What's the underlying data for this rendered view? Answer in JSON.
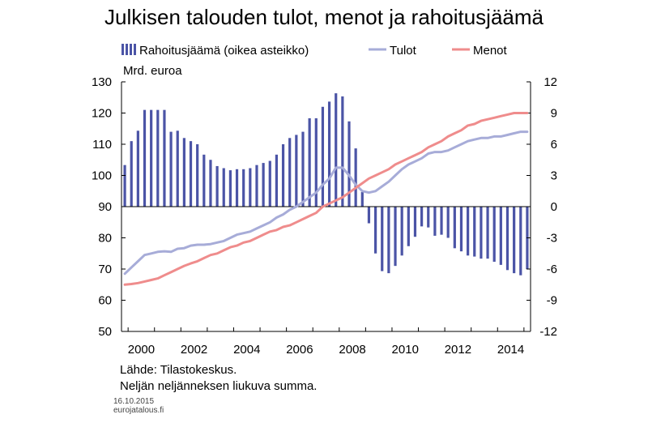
{
  "chart_data": {
    "type": "bar+line",
    "title": "Julkisen talouden tulot, menot ja rahoitusjäämä",
    "left_axis_label": "Mrd. euroa",
    "left_ylim": [
      50,
      130
    ],
    "left_ticks": [
      "130",
      "120",
      "110",
      "100",
      "90",
      "80",
      "70",
      "60",
      "50"
    ],
    "right_ylim": [
      -12,
      12
    ],
    "right_ticks": [
      "12",
      "9",
      "6",
      "3",
      "0",
      "-3",
      "-6",
      "-9",
      "-12"
    ],
    "x_ticks": [
      "2000",
      "2002",
      "2004",
      "2006",
      "2008",
      "2010",
      "2012",
      "2014"
    ],
    "x_start_year": 1999.75,
    "quarter_step": 0.25,
    "series": [
      {
        "name": "Rahoitusjäämä (oikea asteikko)",
        "kind": "bar",
        "axis": "right",
        "color": "#4b54a6",
        "values": [
          4.0,
          6.3,
          7.3,
          9.3,
          9.3,
          9.3,
          9.3,
          7.2,
          7.3,
          6.6,
          6.3,
          6.0,
          5.0,
          4.5,
          3.9,
          3.7,
          3.5,
          3.6,
          3.6,
          3.7,
          4.0,
          4.2,
          4.4,
          5.0,
          6.0,
          6.6,
          6.9,
          7.2,
          8.5,
          8.5,
          9.6,
          10.1,
          10.9,
          10.6,
          8.2,
          5.6,
          1.4,
          -1.6,
          -4.5,
          -6.2,
          -6.4,
          -5.7,
          -4.7,
          -3.8,
          -2.9,
          -1.9,
          -2.0,
          -2.8,
          -2.7,
          -3.0,
          -4.0,
          -4.3,
          -4.7,
          -4.8,
          -5.0,
          -5.0,
          -5.3,
          -5.6,
          -6.1,
          -6.4,
          -6.6,
          -6.0
        ]
      },
      {
        "name": "Tulot",
        "kind": "line",
        "axis": "left",
        "color": "#a7acd8",
        "values": [
          68.5,
          70.5,
          72.5,
          74.5,
          75.0,
          75.5,
          75.7,
          75.5,
          76.5,
          76.7,
          77.5,
          77.8,
          77.8,
          78.0,
          78.5,
          79.0,
          80.0,
          81.0,
          81.5,
          82.0,
          83.0,
          84.0,
          85.0,
          86.5,
          87.5,
          89.0,
          90.0,
          91.5,
          93.0,
          94.5,
          97.0,
          99.0,
          102.5,
          102.5,
          100.0,
          97.0,
          95.0,
          94.5,
          95.0,
          96.5,
          98.0,
          100.0,
          102.0,
          103.5,
          104.5,
          105.5,
          107.0,
          107.5,
          107.5,
          108.0,
          109.0,
          110.0,
          111.0,
          111.5,
          112.0,
          112.0,
          112.5,
          112.5,
          113.0,
          113.5,
          114.0,
          114.0
        ]
      },
      {
        "name": "Menot",
        "kind": "line",
        "axis": "left",
        "color": "#ef8c8c",
        "values": [
          65.0,
          65.2,
          65.5,
          66.0,
          66.5,
          67.0,
          68.0,
          69.0,
          70.0,
          71.0,
          71.8,
          72.5,
          73.5,
          74.5,
          75.0,
          76.0,
          77.0,
          77.5,
          78.5,
          79.0,
          80.0,
          81.0,
          82.0,
          82.5,
          83.5,
          84.0,
          85.0,
          86.0,
          87.0,
          88.0,
          90.0,
          91.0,
          92.0,
          93.0,
          94.5,
          96.0,
          97.5,
          99.0,
          100.0,
          101.0,
          102.0,
          103.5,
          104.5,
          105.5,
          106.5,
          107.5,
          109.0,
          110.0,
          111.0,
          112.5,
          113.5,
          114.5,
          116.0,
          116.5,
          117.5,
          118.0,
          118.5,
          119.0,
          119.5,
          120.0,
          120.0,
          120.0
        ]
      }
    ],
    "notes": [
      "Lähde: Tilastokeskus.",
      "Neljän neljänneksen liukuva summa."
    ],
    "date": "16.10.2015",
    "site": "eurojatalous.fi"
  }
}
